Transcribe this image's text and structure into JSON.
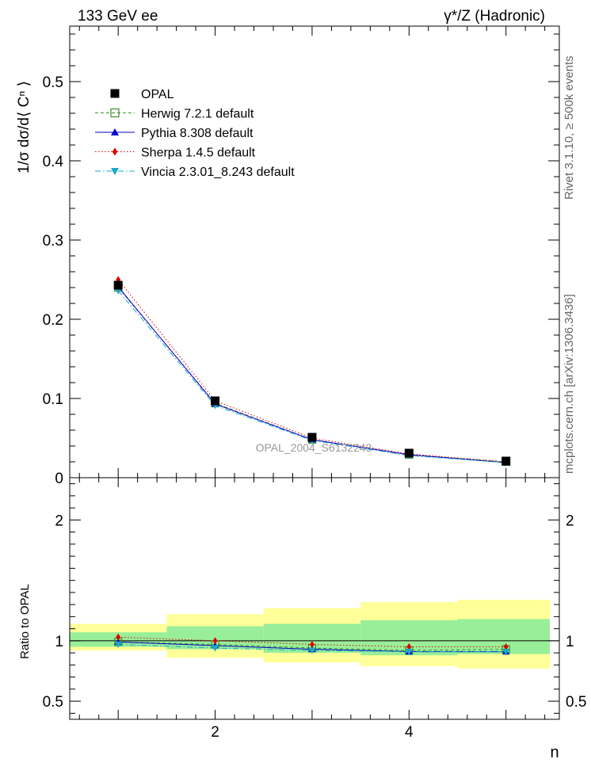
{
  "header": {
    "left": "133 GeV ee",
    "right": "γ*/Z (Hadronic)"
  },
  "side_labels": {
    "rivet": "Rivet 3.1.10, ≥ 500k events",
    "mcplots": "mcplots.cern.ch [arXiv:1306.3436]"
  },
  "watermark": "OPAL_2004_S6132243",
  "chart_data": [
    {
      "type": "line",
      "panel": "main",
      "ylabel": "1/σ dσ/d⟨ Cⁿ ⟩",
      "xlim": [
        0.5,
        5.55
      ],
      "ylim": [
        0,
        0.57
      ],
      "yticks": [
        0,
        0.1,
        0.2,
        0.3,
        0.4,
        0.5
      ],
      "yticklabels": [
        "0",
        "0.1",
        "0.2",
        "0.3",
        "0.4",
        "0.5"
      ],
      "x": [
        1,
        2,
        3,
        4,
        5
      ],
      "legend_placement": "upper-left",
      "series": [
        {
          "name": "OPAL",
          "color": "#000000",
          "marker": "square-filled",
          "line": "none",
          "values": [
            0.243,
            0.097,
            0.051,
            0.031,
            0.021
          ]
        },
        {
          "name": "Herwig 7.2.1 default",
          "color": "#3a8f2a",
          "marker": "square-open",
          "line": "dashed",
          "values": [
            0.24,
            0.094,
            0.048,
            0.029,
            0.02
          ]
        },
        {
          "name": "Pythia 8.308 default",
          "color": "#0000cc",
          "marker": "triangle-up",
          "line": "solid",
          "values": [
            0.241,
            0.093,
            0.048,
            0.029,
            0.019
          ]
        },
        {
          "name": "Sherpa 1.4.5 default",
          "color": "#dd0000",
          "marker": "diamond",
          "line": "dotted",
          "values": [
            0.25,
            0.097,
            0.05,
            0.03,
            0.02
          ]
        },
        {
          "name": "Vincia 2.3.01_8.243 default",
          "color": "#1aa8c8",
          "marker": "triangle-down",
          "line": "dashdot",
          "values": [
            0.236,
            0.091,
            0.047,
            0.028,
            0.019
          ]
        }
      ]
    },
    {
      "type": "line",
      "panel": "ratio",
      "ylabel": "Ratio to OPAL",
      "xlabel": "n",
      "xlim": [
        0.5,
        5.55
      ],
      "ylim": [
        0.35,
        2.35
      ],
      "yticks": [
        0.5,
        1,
        2
      ],
      "yticklabels": [
        "0.5",
        "1",
        "2"
      ],
      "xticks": [
        2,
        4
      ],
      "xticklabels": [
        "2",
        "4"
      ],
      "x": [
        1,
        2,
        3,
        4,
        5
      ],
      "bins": [
        [
          0.5,
          1.5
        ],
        [
          1.5,
          2.5
        ],
        [
          2.5,
          3.5
        ],
        [
          3.5,
          4.5
        ],
        [
          4.5,
          5.5
        ]
      ],
      "band_inner": [
        [
          0.95,
          1.07
        ],
        [
          0.93,
          1.12
        ],
        [
          0.9,
          1.14
        ],
        [
          0.88,
          1.17
        ],
        [
          0.89,
          1.18
        ]
      ],
      "band_outer": [
        [
          0.92,
          1.14
        ],
        [
          0.86,
          1.22
        ],
        [
          0.82,
          1.27
        ],
        [
          0.79,
          1.32
        ],
        [
          0.77,
          1.34
        ]
      ],
      "series": [
        {
          "name": "Herwig 7.2.1 default",
          "color": "#3a8f2a",
          "marker": "square-open",
          "line": "dashed",
          "values": [
            0.99,
            0.97,
            0.94,
            0.92,
            0.93
          ]
        },
        {
          "name": "Pythia 8.308 default",
          "color": "#0000cc",
          "marker": "triangle-up",
          "line": "solid",
          "values": [
            0.99,
            0.96,
            0.93,
            0.91,
            0.91
          ]
        },
        {
          "name": "Sherpa 1.4.5 default",
          "color": "#dd0000",
          "marker": "diamond",
          "line": "dotted",
          "values": [
            1.03,
            1.0,
            0.97,
            0.95,
            0.95
          ]
        },
        {
          "name": "Vincia 2.3.01_8.243 default",
          "color": "#1aa8c8",
          "marker": "triangle-down",
          "line": "dashdot",
          "values": [
            0.97,
            0.94,
            0.92,
            0.91,
            0.91
          ]
        }
      ]
    }
  ]
}
